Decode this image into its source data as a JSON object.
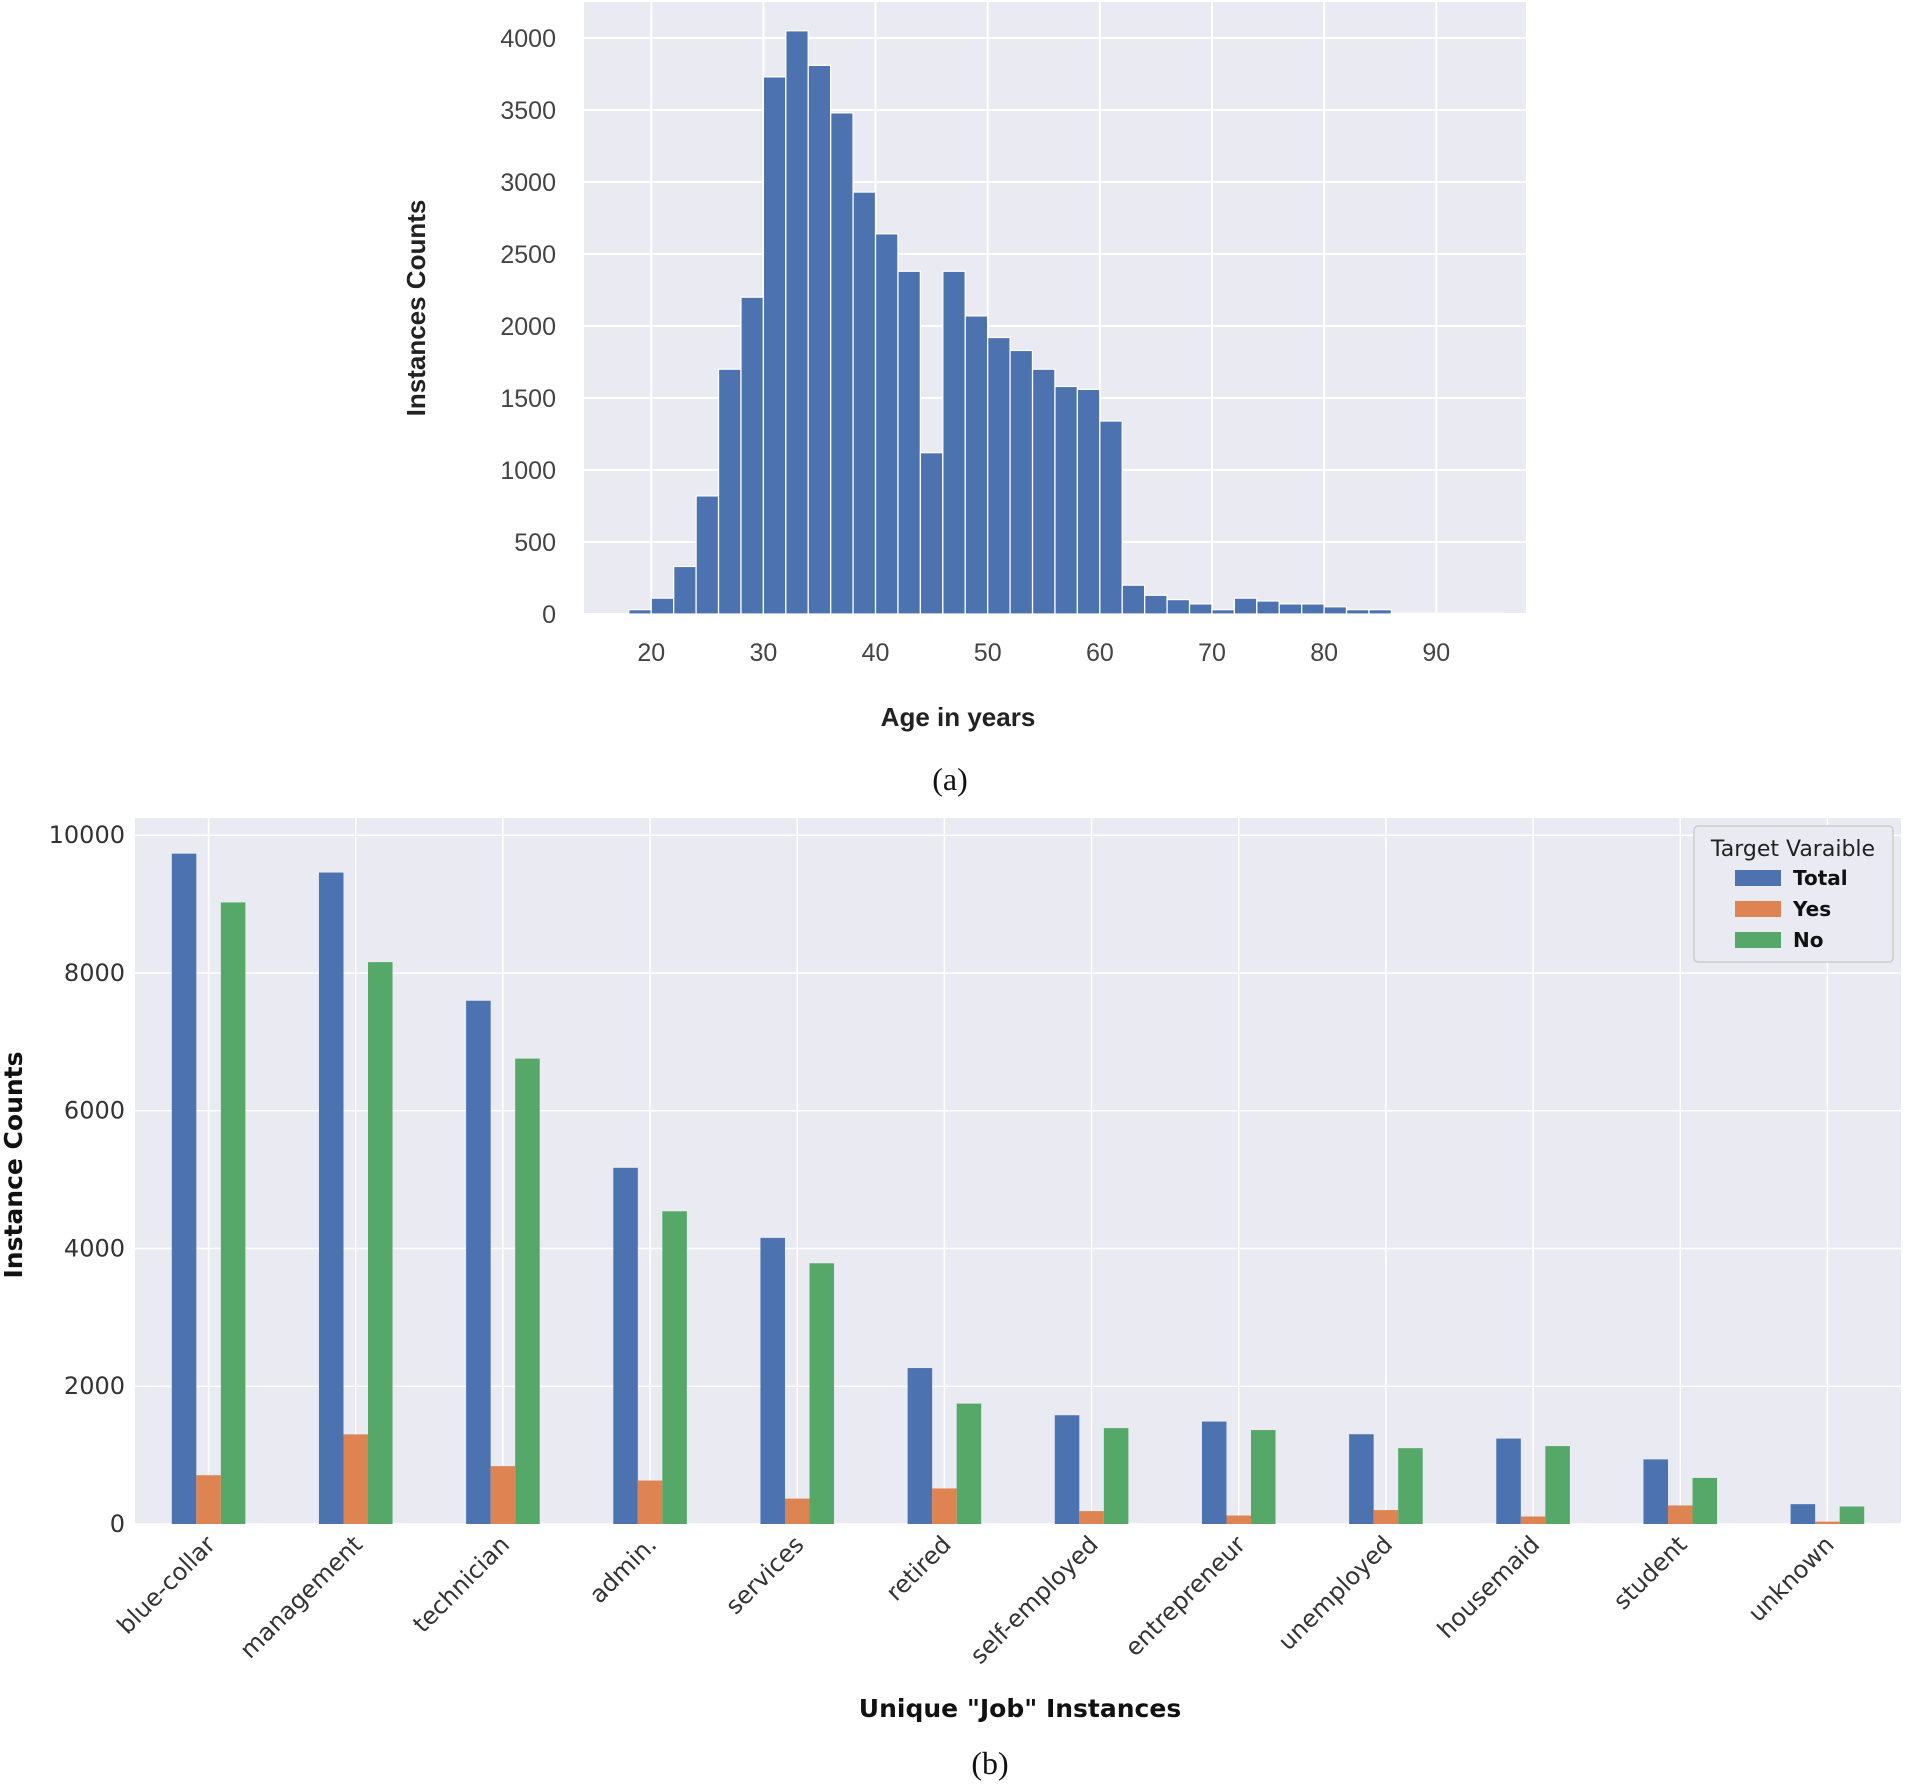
{
  "chart_data": [
    {
      "type": "bar",
      "subtype": "histogram",
      "caption": "(a)",
      "xlabel": "Age in years",
      "ylabel": "Instances Counts",
      "xlim": [
        14,
        98
      ],
      "ylim": [
        0,
        4250
      ],
      "x_ticks": [
        20,
        30,
        40,
        50,
        60,
        70,
        80,
        90
      ],
      "y_ticks": [
        0,
        500,
        1000,
        1500,
        2000,
        2500,
        3000,
        3500,
        4000
      ],
      "bin_width": 1.99,
      "bin_starts": [
        18,
        20,
        22,
        24,
        26,
        28,
        30,
        32,
        34,
        36,
        38,
        40,
        42,
        44,
        46,
        48,
        50,
        52,
        54,
        56,
        58,
        60,
        62,
        64,
        66,
        68,
        70,
        72,
        74,
        76,
        78,
        80,
        82,
        84,
        86,
        88,
        90,
        92,
        94
      ],
      "values": [
        30,
        110,
        330,
        820,
        1700,
        2200,
        3730,
        4050,
        3810,
        3480,
        2930,
        2640,
        2380,
        1120,
        2380,
        2070,
        1920,
        1830,
        1700,
        1580,
        1560,
        1340,
        200,
        130,
        100,
        70,
        30,
        110,
        90,
        70,
        70,
        50,
        30,
        30,
        5,
        5,
        5,
        5,
        5
      ],
      "grid": true,
      "colors": {
        "bar": "#4c72b0",
        "background": "#eaeaf2",
        "grid": "#ffffff"
      }
    },
    {
      "type": "bar",
      "subtype": "grouped",
      "caption": "(b)",
      "xlabel": "Unique \"Job\" Instances",
      "ylabel": "Instance Counts",
      "ylim": [
        0,
        10250
      ],
      "y_ticks": [
        0,
        2000,
        4000,
        6000,
        8000,
        10000
      ],
      "categories": [
        "blue-collar",
        "management",
        "technician",
        "admin.",
        "services",
        "retired",
        "self-employed",
        "entrepreneur",
        "unemployed",
        "housemaid",
        "student",
        "unknown"
      ],
      "series": [
        {
          "name": "Total",
          "color": "#4c72b0",
          "values": [
            9732,
            9458,
            7597,
            5171,
            4154,
            2264,
            1579,
            1487,
            1303,
            1240,
            938,
            288
          ]
        },
        {
          "name": "Yes",
          "color": "#dd8452",
          "values": [
            708,
            1301,
            840,
            631,
            369,
            516,
            187,
            123,
            202,
            109,
            269,
            34
          ]
        },
        {
          "name": "No",
          "color": "#55a868",
          "values": [
            9024,
            8157,
            6757,
            4540,
            3785,
            1748,
            1392,
            1364,
            1101,
            1131,
            669,
            254
          ]
        }
      ],
      "legend": {
        "title": "Target Varaible",
        "position": "top-right"
      },
      "grid": true,
      "colors": {
        "background": "#eaeaf2",
        "grid": "#ffffff"
      }
    }
  ]
}
